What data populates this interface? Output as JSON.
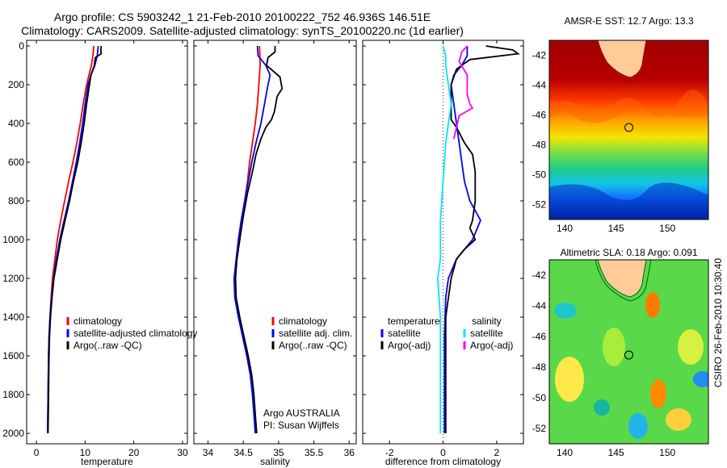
{
  "figure": {
    "title_line1": "Argo profile: CS 5903242_1 21-Feb-2010 20100222_752 46.936S 146.51E",
    "title_line2": "Climatology: CARS2009. Satellite-adjusted climatology: synTS_20100220.nc (1d earlier)",
    "stamp": "CSIRO 26-Feb-2010 10:30:40"
  },
  "colors": {
    "climatology": "#ff0000",
    "satellite": "#0000ff",
    "argo": "#000000",
    "temp_satellite": "#00e5ff",
    "salinity_adj": "#ff00ff"
  },
  "chart_data": [
    {
      "type": "line",
      "xlabel": "temperature",
      "ylabel": "",
      "xlim": [
        -2,
        31
      ],
      "ylim": [
        2080,
        0
      ],
      "xticks": [
        "0",
        "10",
        "20",
        "30"
      ],
      "yticks": [
        "0",
        "200",
        "400",
        "600",
        "800",
        "1000",
        "1200",
        "1400",
        "1600",
        "1800",
        "2000"
      ],
      "legend": "bottom-left",
      "legend_entries": [
        "climatology",
        "satellite-adjusted climatology",
        "Argo(..raw -QC)"
      ],
      "series": [
        {
          "name": "climatology",
          "points": [
            [
              11.8,
              0
            ],
            [
              11.6,
              50
            ],
            [
              11.3,
              100
            ],
            [
              10.8,
              150
            ],
            [
              10.3,
              200
            ],
            [
              9.6,
              300
            ],
            [
              9.0,
              400
            ],
            [
              8.3,
              500
            ],
            [
              7.5,
              600
            ],
            [
              6.6,
              700
            ],
            [
              5.8,
              800
            ],
            [
              5.0,
              900
            ],
            [
              4.3,
              1000
            ],
            [
              3.8,
              1100
            ],
            [
              3.3,
              1200
            ],
            [
              3.0,
              1300
            ],
            [
              2.8,
              1400
            ],
            [
              2.6,
              1500
            ],
            [
              2.5,
              1600
            ],
            [
              2.4,
              1800
            ],
            [
              2.3,
              2000
            ]
          ]
        },
        {
          "name": "satellite-adjusted climatology",
          "points": [
            [
              12.7,
              0
            ],
            [
              12.5,
              50
            ],
            [
              12.0,
              100
            ],
            [
              11.2,
              150
            ],
            [
              10.6,
              200
            ],
            [
              10.0,
              300
            ],
            [
              9.5,
              400
            ],
            [
              8.9,
              500
            ],
            [
              8.2,
              600
            ],
            [
              7.4,
              700
            ],
            [
              6.6,
              800
            ],
            [
              5.7,
              900
            ],
            [
              4.8,
              1000
            ],
            [
              4.1,
              1100
            ],
            [
              3.5,
              1200
            ],
            [
              3.1,
              1300
            ],
            [
              2.8,
              1400
            ],
            [
              2.6,
              1500
            ],
            [
              2.5,
              1600
            ],
            [
              2.4,
              1800
            ],
            [
              2.3,
              2000
            ]
          ]
        },
        {
          "name": "Argo(..raw -QC)",
          "points": [
            [
              13.3,
              0
            ],
            [
              13.2,
              20
            ],
            [
              13.3,
              40
            ],
            [
              12.1,
              60
            ],
            [
              11.9,
              100
            ],
            [
              11.2,
              150
            ],
            [
              10.9,
              200
            ],
            [
              10.3,
              300
            ],
            [
              9.8,
              400
            ],
            [
              9.2,
              500
            ],
            [
              8.5,
              600
            ],
            [
              7.6,
              700
            ],
            [
              6.8,
              800
            ],
            [
              5.9,
              900
            ],
            [
              5.0,
              1000
            ],
            [
              4.3,
              1100
            ],
            [
              3.6,
              1200
            ],
            [
              3.2,
              1300
            ],
            [
              2.9,
              1400
            ],
            [
              2.7,
              1500
            ],
            [
              2.6,
              1600
            ],
            [
              2.5,
              1800
            ],
            [
              2.4,
              2000
            ]
          ]
        }
      ]
    },
    {
      "type": "line",
      "xlabel": "salinity",
      "ylabel": "",
      "xlim": [
        33.8,
        36.1
      ],
      "ylim": [
        2080,
        0
      ],
      "xticks": [
        "34",
        "34.5",
        "35",
        "35.5",
        "36"
      ],
      "legend": "bottom-right",
      "legend_entries": [
        "climatology",
        "satellite adj. clim.",
        "Argo(..raw -QC)"
      ],
      "annotation": [
        "Argo AUSTRALIA",
        "PI: Susan Wijffels"
      ],
      "series": [
        {
          "name": "climatology",
          "points": [
            [
              34.73,
              0
            ],
            [
              34.74,
              100
            ],
            [
              34.72,
              200
            ],
            [
              34.7,
              300
            ],
            [
              34.67,
              400
            ],
            [
              34.63,
              500
            ],
            [
              34.59,
              600
            ],
            [
              34.56,
              700
            ],
            [
              34.52,
              800
            ],
            [
              34.48,
              900
            ],
            [
              34.45,
              1000
            ],
            [
              34.41,
              1100
            ],
            [
              34.38,
              1200
            ],
            [
              34.39,
              1300
            ],
            [
              34.44,
              1400
            ],
            [
              34.5,
              1500
            ],
            [
              34.56,
              1600
            ],
            [
              34.61,
              1700
            ],
            [
              34.64,
              1800
            ],
            [
              34.66,
              1900
            ],
            [
              34.68,
              2000
            ]
          ]
        },
        {
          "name": "satellite adj. clim.",
          "points": [
            [
              34.7,
              0
            ],
            [
              34.71,
              50
            ],
            [
              34.82,
              100
            ],
            [
              34.88,
              150
            ],
            [
              34.85,
              200
            ],
            [
              34.8,
              300
            ],
            [
              34.75,
              400
            ],
            [
              34.68,
              500
            ],
            [
              34.62,
              600
            ],
            [
              34.57,
              700
            ],
            [
              34.52,
              800
            ],
            [
              34.47,
              900
            ],
            [
              34.43,
              1000
            ],
            [
              34.4,
              1100
            ],
            [
              34.37,
              1200
            ],
            [
              34.38,
              1300
            ],
            [
              34.43,
              1400
            ],
            [
              34.49,
              1500
            ],
            [
              34.55,
              1600
            ],
            [
              34.6,
              1700
            ],
            [
              34.63,
              1800
            ],
            [
              34.65,
              1900
            ],
            [
              34.67,
              2000
            ]
          ]
        },
        {
          "name": "Argo(..raw -QC)",
          "points": [
            [
              34.95,
              0
            ],
            [
              34.95,
              30
            ],
            [
              34.85,
              60
            ],
            [
              34.83,
              100
            ],
            [
              35.02,
              160
            ],
            [
              35.05,
              220
            ],
            [
              34.98,
              260
            ],
            [
              34.96,
              300
            ],
            [
              34.94,
              340
            ],
            [
              34.9,
              380
            ],
            [
              34.82,
              420
            ],
            [
              34.75,
              480
            ],
            [
              34.68,
              560
            ],
            [
              34.63,
              650
            ],
            [
              34.56,
              760
            ],
            [
              34.5,
              880
            ],
            [
              34.45,
              1000
            ],
            [
              34.41,
              1100
            ],
            [
              34.39,
              1200
            ],
            [
              34.4,
              1300
            ],
            [
              34.45,
              1400
            ],
            [
              34.51,
              1500
            ],
            [
              34.57,
              1600
            ],
            [
              34.62,
              1700
            ],
            [
              34.65,
              1800
            ],
            [
              34.67,
              1900
            ],
            [
              34.69,
              2000
            ]
          ]
        }
      ]
    },
    {
      "type": "line",
      "xlabel": "difference from climatology",
      "ylabel": "",
      "xlim": [
        -3,
        3
      ],
      "ylim": [
        2080,
        0
      ],
      "xticks": [
        "-2",
        "0",
        "2"
      ],
      "legend": "bottom",
      "legend_headers": [
        "temperature",
        "salinity"
      ],
      "legend_entries": [
        "satellite",
        "Argo(-adj)",
        "satellite",
        "Argo(-adj)"
      ],
      "series": [
        {
          "name": "satellite",
          "group": "temperature",
          "points": [
            [
              0.9,
              0
            ],
            [
              0.9,
              50
            ],
            [
              0.7,
              100
            ],
            [
              0.4,
              150
            ],
            [
              0.3,
              200
            ],
            [
              0.4,
              300
            ],
            [
              0.5,
              400
            ],
            [
              0.6,
              500
            ],
            [
              0.7,
              600
            ],
            [
              0.8,
              700
            ],
            [
              1.0,
              800
            ],
            [
              1.4,
              900
            ],
            [
              1.1,
              1000
            ],
            [
              0.5,
              1100
            ],
            [
              0.2,
              1200
            ],
            [
              0.1,
              1300
            ],
            [
              0.05,
              1500
            ],
            [
              0.05,
              2000
            ]
          ]
        },
        {
          "name": "Argo(-adj)",
          "group": "temperature",
          "points": [
            [
              1.6,
              0
            ],
            [
              2.6,
              20
            ],
            [
              2.8,
              40
            ],
            [
              1.0,
              70
            ],
            [
              0.5,
              120
            ],
            [
              0.3,
              200
            ],
            [
              0.3,
              300
            ],
            [
              0.3,
              380
            ],
            [
              0.5,
              420
            ],
            [
              0.8,
              500
            ],
            [
              1.1,
              560
            ],
            [
              1.2,
              650
            ],
            [
              1.2,
              800
            ],
            [
              1.1,
              900
            ],
            [
              1.0,
              940
            ],
            [
              1.2,
              1000
            ],
            [
              0.8,
              1050
            ],
            [
              0.5,
              1100
            ],
            [
              0.3,
              1200
            ],
            [
              0.2,
              1300
            ],
            [
              0.1,
              1400
            ],
            [
              0.1,
              1700
            ],
            [
              0.1,
              2000
            ]
          ]
        },
        {
          "name": "satellite",
          "group": "salinity",
          "points": [
            [
              0.0,
              0
            ],
            [
              0.1,
              50
            ],
            [
              0.1,
              100
            ],
            [
              0.2,
              200
            ],
            [
              0.3,
              300
            ],
            [
              0.2,
              400
            ],
            [
              0.1,
              500
            ],
            [
              0.0,
              700
            ],
            [
              -0.1,
              900
            ],
            [
              -0.1,
              1100
            ],
            [
              -0.2,
              1200
            ],
            [
              -0.1,
              1400
            ],
            [
              -0.1,
              1600
            ],
            [
              -0.1,
              1800
            ],
            [
              -0.1,
              2000
            ]
          ]
        },
        {
          "name": "Argo(-adj)",
          "group": "salinity",
          "points": [
            [
              0.9,
              0
            ],
            [
              0.7,
              30
            ],
            [
              0.6,
              80
            ],
            [
              0.9,
              150
            ],
            [
              0.9,
              200
            ],
            [
              0.9,
              250
            ],
            [
              1.0,
              300
            ],
            [
              1.1,
              320
            ],
            [
              0.6,
              360
            ],
            [
              0.5,
              420
            ],
            [
              0.4,
              480
            ]
          ]
        }
      ]
    },
    {
      "type": "heatmap",
      "title": "AMSR-E SST: 12.7 Argo: 13.3",
      "xlim": [
        138.5,
        154
      ],
      "ylim": [
        -53,
        -41
      ],
      "xticks": [
        "140",
        "145",
        "150"
      ],
      "yticks": [
        "-42",
        "-44",
        "-46",
        "-48",
        "-50",
        "-52"
      ],
      "marker": {
        "lon": 146.51,
        "lat": -46.94
      }
    },
    {
      "type": "heatmap",
      "title": "Altimetric SLA: 0.18 Argo: 0.091",
      "xlim": [
        138.5,
        154
      ],
      "ylim": [
        -53,
        -41
      ],
      "xticks": [
        "140",
        "145",
        "150"
      ],
      "yticks": [
        "-42",
        "-44",
        "-46",
        "-48",
        "-50",
        "-52"
      ],
      "marker": {
        "lon": 146.51,
        "lat": -46.94
      }
    }
  ]
}
